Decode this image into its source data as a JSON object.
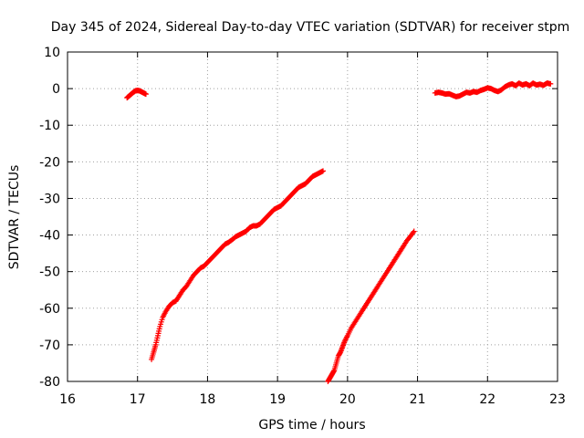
{
  "chart_data": {
    "type": "scatter",
    "title": "Day 345 of 2024, Sidereal Day-to-day VTEC variation (SDTVAR) for receiver stpm",
    "xlabel": "GPS time / hours",
    "ylabel": "SDTVAR / TECUs",
    "xlim": [
      16,
      23
    ],
    "ylim": [
      -80,
      10
    ],
    "x_ticks": [
      "16",
      "17",
      "18",
      "19",
      "20",
      "21",
      "22",
      "23"
    ],
    "y_ticks": [
      "10",
      "0",
      "-10",
      "-20",
      "-30",
      "-40",
      "-50",
      "-60",
      "-70",
      "-80"
    ],
    "grid": true,
    "marker": "plus",
    "color": "#ff0000",
    "series": [
      {
        "name": "segment-1",
        "points": [
          [
            16.85,
            -2.5
          ],
          [
            16.88,
            -2.0
          ],
          [
            16.91,
            -1.5
          ],
          [
            16.94,
            -1.0
          ],
          [
            16.97,
            -0.6
          ],
          [
            17.0,
            -0.5
          ],
          [
            17.03,
            -0.6
          ],
          [
            17.06,
            -0.9
          ],
          [
            17.09,
            -1.2
          ],
          [
            17.12,
            -1.5
          ]
        ]
      },
      {
        "name": "segment-2",
        "points": [
          [
            17.2,
            -74
          ],
          [
            17.23,
            -72
          ],
          [
            17.26,
            -70
          ],
          [
            17.29,
            -67.5
          ],
          [
            17.32,
            -65
          ],
          [
            17.36,
            -62.5
          ],
          [
            17.4,
            -61
          ],
          [
            17.45,
            -59.5
          ],
          [
            17.5,
            -58.5
          ],
          [
            17.55,
            -58
          ],
          [
            17.6,
            -56.5
          ],
          [
            17.65,
            -55
          ],
          [
            17.7,
            -54
          ],
          [
            17.75,
            -52.5
          ],
          [
            17.8,
            -51
          ],
          [
            17.85,
            -50
          ],
          [
            17.9,
            -49
          ],
          [
            17.95,
            -48.5
          ],
          [
            18.0,
            -47.5
          ],
          [
            18.05,
            -46.5
          ],
          [
            18.1,
            -45.5
          ],
          [
            18.15,
            -44.5
          ],
          [
            18.2,
            -43.5
          ],
          [
            18.25,
            -42.5
          ],
          [
            18.3,
            -42
          ],
          [
            18.35,
            -41.3
          ],
          [
            18.4,
            -40.5
          ],
          [
            18.45,
            -40
          ],
          [
            18.5,
            -39.5
          ],
          [
            18.55,
            -39
          ],
          [
            18.6,
            -38
          ],
          [
            18.65,
            -37.5
          ],
          [
            18.7,
            -37.5
          ],
          [
            18.75,
            -37
          ],
          [
            18.8,
            -36
          ],
          [
            18.85,
            -35
          ],
          [
            18.9,
            -34
          ],
          [
            18.95,
            -33
          ],
          [
            19.0,
            -32.5
          ],
          [
            19.05,
            -32
          ],
          [
            19.1,
            -31
          ],
          [
            19.15,
            -30
          ],
          [
            19.2,
            -29
          ],
          [
            19.25,
            -28
          ],
          [
            19.3,
            -27
          ],
          [
            19.35,
            -26.5
          ],
          [
            19.4,
            -26
          ],
          [
            19.45,
            -25
          ],
          [
            19.5,
            -24
          ],
          [
            19.55,
            -23.5
          ],
          [
            19.6,
            -23
          ],
          [
            19.65,
            -22.5
          ]
        ]
      },
      {
        "name": "segment-3",
        "points": [
          [
            19.72,
            -80
          ],
          [
            19.75,
            -79
          ],
          [
            19.78,
            -78
          ],
          [
            19.81,
            -77
          ],
          [
            19.84,
            -75
          ],
          [
            19.87,
            -73
          ],
          [
            19.9,
            -72
          ],
          [
            19.93,
            -70.5
          ],
          [
            19.96,
            -69
          ],
          [
            20.0,
            -67.5
          ],
          [
            20.05,
            -65.5
          ],
          [
            20.1,
            -64
          ],
          [
            20.15,
            -62.5
          ],
          [
            20.2,
            -61
          ],
          [
            20.25,
            -59.5
          ],
          [
            20.3,
            -58
          ],
          [
            20.35,
            -56.5
          ],
          [
            20.4,
            -55
          ],
          [
            20.45,
            -53.5
          ],
          [
            20.5,
            -52
          ],
          [
            20.55,
            -50.5
          ],
          [
            20.6,
            -49
          ],
          [
            20.65,
            -47.5
          ],
          [
            20.7,
            -46
          ],
          [
            20.75,
            -44.5
          ],
          [
            20.8,
            -43
          ],
          [
            20.85,
            -41.5
          ],
          [
            20.9,
            -40.3
          ],
          [
            20.95,
            -39
          ]
        ]
      },
      {
        "name": "segment-4",
        "points": [
          [
            21.25,
            -1.2
          ],
          [
            21.3,
            -1.0
          ],
          [
            21.35,
            -1.2
          ],
          [
            21.4,
            -1.5
          ],
          [
            21.45,
            -1.4
          ],
          [
            21.5,
            -1.8
          ],
          [
            21.55,
            -2.2
          ],
          [
            21.6,
            -2.0
          ],
          [
            21.65,
            -1.5
          ],
          [
            21.7,
            -1.0
          ],
          [
            21.75,
            -1.2
          ],
          [
            21.8,
            -0.8
          ],
          [
            21.85,
            -1.0
          ],
          [
            21.9,
            -0.5
          ],
          [
            21.95,
            -0.2
          ],
          [
            22.0,
            0.2
          ],
          [
            22.05,
            0.0
          ],
          [
            22.1,
            -0.5
          ],
          [
            22.15,
            -0.8
          ],
          [
            22.2,
            -0.3
          ],
          [
            22.25,
            0.5
          ],
          [
            22.3,
            1.0
          ],
          [
            22.35,
            1.3
          ],
          [
            22.4,
            0.8
          ],
          [
            22.45,
            1.5
          ],
          [
            22.5,
            1.0
          ],
          [
            22.55,
            1.3
          ],
          [
            22.6,
            0.8
          ],
          [
            22.65,
            1.5
          ],
          [
            22.7,
            1.0
          ],
          [
            22.75,
            1.2
          ],
          [
            22.8,
            0.9
          ],
          [
            22.85,
            1.5
          ],
          [
            22.9,
            1.3
          ]
        ]
      }
    ]
  }
}
